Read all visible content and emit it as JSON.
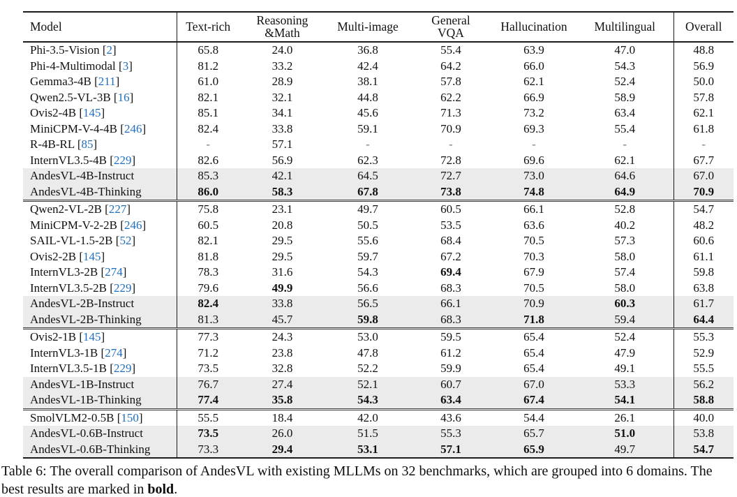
{
  "colors": {
    "citation_blue": "#1f6fbe",
    "row_shade": "#ebebeb",
    "rule": "#1a1a1a",
    "background": "#ffffff"
  },
  "table": {
    "columns": [
      "Model",
      "Text-rich",
      "Reasoning\n&Math",
      "Multi-image",
      "General\nVQA",
      "Hallucination",
      "Multilingual",
      "Overall"
    ],
    "groups": [
      {
        "rows": [
          {
            "model": "Phi-3.5-Vision",
            "cite": "2",
            "shaded": false,
            "values": [
              "65.8",
              "24.0",
              "36.8",
              "55.4",
              "63.9",
              "47.0",
              "48.8"
            ],
            "bold": []
          },
          {
            "model": "Phi-4-Multimodal",
            "cite": "3",
            "shaded": false,
            "values": [
              "81.2",
              "33.2",
              "42.4",
              "64.2",
              "66.0",
              "54.3",
              "56.9"
            ],
            "bold": []
          },
          {
            "model": "Gemma3-4B",
            "cite": "211",
            "shaded": false,
            "values": [
              "61.0",
              "28.9",
              "38.1",
              "57.8",
              "62.1",
              "52.4",
              "50.0"
            ],
            "bold": []
          },
          {
            "model": "Qwen2.5-VL-3B",
            "cite": "16",
            "shaded": false,
            "values": [
              "82.1",
              "32.1",
              "44.8",
              "62.2",
              "66.9",
              "58.9",
              "57.8"
            ],
            "bold": []
          },
          {
            "model": "Ovis2-4B",
            "cite": "145",
            "shaded": false,
            "values": [
              "85.1",
              "34.1",
              "45.6",
              "71.3",
              "73.2",
              "63.4",
              "62.1"
            ],
            "bold": []
          },
          {
            "model": "MiniCPM-V-4-4B",
            "cite": "246",
            "shaded": false,
            "values": [
              "82.4",
              "33.8",
              "59.1",
              "70.9",
              "69.3",
              "55.4",
              "61.8"
            ],
            "bold": []
          },
          {
            "model": "R-4B-RL",
            "cite": "85",
            "shaded": false,
            "values": [
              "-",
              "57.1",
              "-",
              "-",
              "-",
              "-",
              "-"
            ],
            "bold": []
          },
          {
            "model": "InternVL3.5-4B",
            "cite": "229",
            "shaded": false,
            "values": [
              "82.6",
              "56.9",
              "62.3",
              "72.8",
              "69.6",
              "62.1",
              "67.7"
            ],
            "bold": []
          },
          {
            "model": "AndesVL-4B-Instruct",
            "cite": null,
            "shaded": true,
            "values": [
              "85.3",
              "42.1",
              "64.5",
              "72.7",
              "73.0",
              "64.6",
              "67.0"
            ],
            "bold": []
          },
          {
            "model": "AndesVL-4B-Thinking",
            "cite": null,
            "shaded": true,
            "values": [
              "86.0",
              "58.3",
              "67.8",
              "73.8",
              "74.8",
              "64.9",
              "70.9"
            ],
            "bold": [
              0,
              1,
              2,
              3,
              4,
              5,
              6
            ]
          }
        ]
      },
      {
        "rows": [
          {
            "model": "Qwen2-VL-2B",
            "cite": "227",
            "shaded": false,
            "values": [
              "75.8",
              "23.1",
              "49.7",
              "60.5",
              "66.1",
              "52.8",
              "54.7"
            ],
            "bold": []
          },
          {
            "model": "MiniCPM-V-2-2B",
            "cite": "246",
            "shaded": false,
            "values": [
              "60.5",
              "20.8",
              "50.5",
              "53.5",
              "63.6",
              "40.2",
              "48.2"
            ],
            "bold": []
          },
          {
            "model": "SAIL-VL-1.5-2B",
            "cite": "52",
            "shaded": false,
            "values": [
              "82.1",
              "29.5",
              "55.6",
              "68.4",
              "70.5",
              "57.3",
              "60.6"
            ],
            "bold": []
          },
          {
            "model": "Ovis2-2B",
            "cite": "145",
            "shaded": false,
            "values": [
              "81.8",
              "29.5",
              "59.7",
              "67.2",
              "70.3",
              "58.0",
              "61.1"
            ],
            "bold": []
          },
          {
            "model": "InternVL3-2B",
            "cite": "274",
            "shaded": false,
            "values": [
              "78.3",
              "31.6",
              "54.3",
              "69.4",
              "67.9",
              "57.4",
              "59.8"
            ],
            "bold": [
              3
            ]
          },
          {
            "model": "InternVL3.5-2B",
            "cite": "229",
            "shaded": false,
            "values": [
              "79.6",
              "49.9",
              "56.6",
              "68.3",
              "70.5",
              "58.0",
              "63.8"
            ],
            "bold": [
              1
            ]
          },
          {
            "model": "AndesVL-2B-Instruct",
            "cite": null,
            "shaded": true,
            "values": [
              "82.4",
              "33.8",
              "56.5",
              "66.1",
              "70.9",
              "60.3",
              "61.7"
            ],
            "bold": [
              0,
              5
            ]
          },
          {
            "model": "AndesVL-2B-Thinking",
            "cite": null,
            "shaded": true,
            "values": [
              "81.3",
              "45.7",
              "59.8",
              "68.3",
              "71.8",
              "59.4",
              "64.4"
            ],
            "bold": [
              2,
              4,
              6
            ]
          }
        ]
      },
      {
        "rows": [
          {
            "model": "Ovis2-1B",
            "cite": "145",
            "shaded": false,
            "values": [
              "77.3",
              "24.3",
              "53.0",
              "59.5",
              "65.4",
              "52.4",
              "55.3"
            ],
            "bold": []
          },
          {
            "model": "InternVL3-1B",
            "cite": "274",
            "shaded": false,
            "values": [
              "71.2",
              "23.8",
              "47.8",
              "61.2",
              "65.4",
              "47.9",
              "52.9"
            ],
            "bold": []
          },
          {
            "model": "InternVL3.5-1B",
            "cite": "229",
            "shaded": false,
            "values": [
              "73.5",
              "32.8",
              "52.2",
              "59.9",
              "65.4",
              "49.1",
              "55.5"
            ],
            "bold": []
          },
          {
            "model": "AndesVL-1B-Instruct",
            "cite": null,
            "shaded": true,
            "values": [
              "76.7",
              "27.4",
              "52.1",
              "60.7",
              "67.0",
              "53.3",
              "56.2"
            ],
            "bold": []
          },
          {
            "model": "AndesVL-1B-Thinking",
            "cite": null,
            "shaded": true,
            "values": [
              "77.4",
              "35.8",
              "54.3",
              "63.4",
              "67.4",
              "54.1",
              "58.8"
            ],
            "bold": [
              0,
              1,
              2,
              3,
              4,
              5,
              6
            ]
          }
        ]
      },
      {
        "rows": [
          {
            "model": "SmolVLM2-0.5B",
            "cite": "150",
            "shaded": false,
            "values": [
              "55.5",
              "18.4",
              "42.0",
              "43.6",
              "54.4",
              "26.1",
              "40.0"
            ],
            "bold": []
          },
          {
            "model": "AndesVL-0.6B-Instruct",
            "cite": null,
            "shaded": true,
            "values": [
              "73.5",
              "26.0",
              "51.5",
              "55.3",
              "65.7",
              "51.0",
              "53.8"
            ],
            "bold": [
              0,
              5
            ]
          },
          {
            "model": "AndesVL-0.6B-Thinking",
            "cite": null,
            "shaded": true,
            "values": [
              "73.3",
              "29.4",
              "53.1",
              "57.1",
              "65.9",
              "49.7",
              "54.7"
            ],
            "bold": [
              1,
              2,
              3,
              4,
              6
            ]
          }
        ]
      }
    ]
  },
  "caption": {
    "label": "Table 6:",
    "body": " The overall comparison of AndesVL with existing MLLMs on 32 benchmarks, which are grouped into 6 domains. The best results are marked in ",
    "bold_word": "bold",
    "suffix": "."
  }
}
